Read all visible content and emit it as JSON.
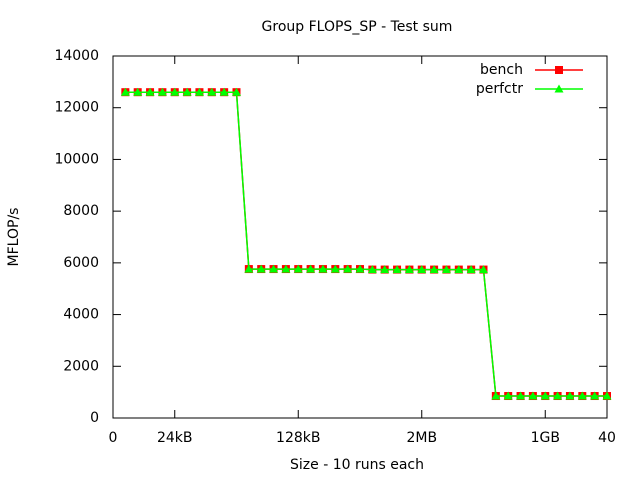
{
  "chart_data": {
    "type": "line",
    "title": "Group FLOPS_SP - Test sum",
    "x_label": "Size - 10 runs each",
    "y_label": "MFLOP/s",
    "x": [
      1,
      2,
      3,
      4,
      5,
      6,
      7,
      8,
      9,
      10,
      11,
      12,
      13,
      14,
      15,
      16,
      17,
      18,
      19,
      20,
      21,
      22,
      23,
      24,
      25,
      26,
      27,
      28,
      29,
      30,
      31,
      32,
      33,
      34,
      35,
      36,
      37,
      38,
      39,
      40
    ],
    "series": [
      {
        "name": "bench",
        "color": "#ff0000",
        "marker": "square",
        "values": [
          12600,
          12600,
          12600,
          12600,
          12600,
          12600,
          12600,
          12600,
          12600,
          12600,
          5760,
          5760,
          5760,
          5760,
          5760,
          5760,
          5760,
          5760,
          5760,
          5760,
          5740,
          5740,
          5740,
          5740,
          5740,
          5740,
          5740,
          5740,
          5740,
          5740,
          850,
          850,
          850,
          850,
          850,
          850,
          850,
          850,
          850,
          850
        ]
      },
      {
        "name": "perfctr",
        "color": "#00ff00",
        "marker": "triangle",
        "values": [
          12600,
          12600,
          12600,
          12600,
          12600,
          12600,
          12600,
          12600,
          12600,
          12600,
          5760,
          5760,
          5760,
          5760,
          5760,
          5760,
          5760,
          5760,
          5760,
          5760,
          5740,
          5740,
          5740,
          5740,
          5740,
          5740,
          5740,
          5740,
          5740,
          5740,
          850,
          850,
          850,
          850,
          850,
          850,
          850,
          850,
          850,
          850
        ]
      }
    ],
    "xlim": [
      0,
      40
    ],
    "xticks": [
      0,
      {
        "value": 5,
        "label": "24kB"
      },
      {
        "value": 15,
        "label": "128kB"
      },
      {
        "value": 25,
        "label": "2MB"
      },
      {
        "value": 35,
        "label": "1GB"
      },
      40
    ],
    "ylim": [
      0,
      14000
    ],
    "yticks": [
      0,
      2000,
      4000,
      6000,
      8000,
      10000,
      12000,
      14000
    ],
    "grid": false,
    "legend": "top-right"
  }
}
